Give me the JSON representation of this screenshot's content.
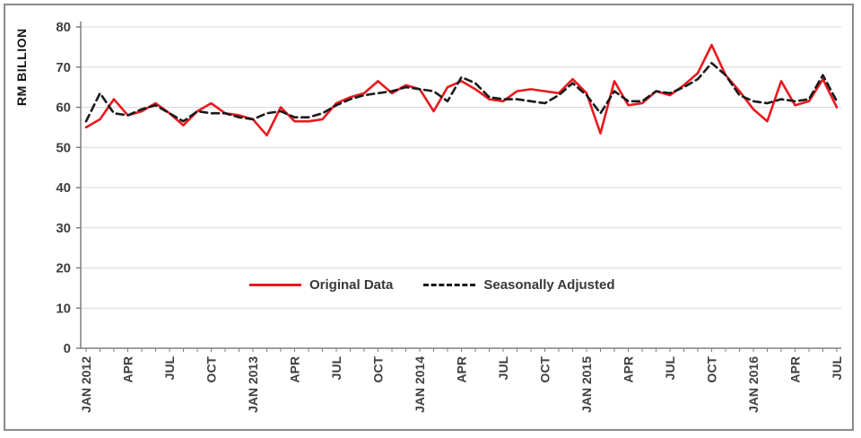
{
  "figure": {
    "ylabel": "RM BILLION"
  },
  "legend": {
    "items": [
      {
        "label": "Original Data",
        "style": "solid",
        "color": "#e8191f"
      },
      {
        "label": "Seasonally Adjusted",
        "style": "dashed",
        "color": "#1a1a1a"
      }
    ]
  },
  "colors": {
    "grid": "#d9d9d9",
    "axis": "#7f7f7f",
    "tick_text": "#3f3f3f",
    "original": "#e8191f",
    "adjusted": "#1a1a1a"
  },
  "chart_data": {
    "type": "line",
    "title": "",
    "xlabel": "",
    "ylabel": "RM BILLION",
    "ylim": [
      0,
      80
    ],
    "y_ticks": [
      0,
      10,
      20,
      30,
      40,
      50,
      60,
      70,
      80
    ],
    "grid": "horizontal",
    "legend_position": "inside-bottom-center",
    "x": [
      "JAN 2012",
      "FEB 2012",
      "MAR 2012",
      "APR 2012",
      "MAY 2012",
      "JUN 2012",
      "JUL 2012",
      "AUG 2012",
      "SEP 2012",
      "OCT 2012",
      "NOV 2012",
      "DEC 2012",
      "JAN 2013",
      "FEB 2013",
      "MAR 2013",
      "APR 2013",
      "MAY 2013",
      "JUN 2013",
      "JUL 2013",
      "AUG 2013",
      "SEP 2013",
      "OCT 2013",
      "NOV 2013",
      "DEC 2013",
      "JAN 2014",
      "FEB 2014",
      "MAR 2014",
      "APR 2014",
      "MAY 2014",
      "JUN 2014",
      "JUL 2014",
      "AUG 2014",
      "SEP 2014",
      "OCT 2014",
      "NOV 2014",
      "DEC 2014",
      "JAN 2015",
      "FEB 2015",
      "MAR 2015",
      "APR 2015",
      "MAY 2015",
      "JUN 2015",
      "JUL 2015",
      "AUG 2015",
      "SEP 2015",
      "OCT 2015",
      "NOV 2015",
      "DEC 2015",
      "JAN 2016",
      "FEB 2016",
      "MAR 2016",
      "APR 2016",
      "MAY 2016",
      "JUN 2016",
      "JUL 2016"
    ],
    "x_tick_indices": [
      0,
      3,
      6,
      9,
      12,
      15,
      18,
      21,
      24,
      27,
      30,
      33,
      36,
      39,
      42,
      45,
      48,
      51,
      54
    ],
    "x_tick_labels": [
      "JAN 2012",
      "APR",
      "JUL",
      "OCT",
      "JAN 2013",
      "APR",
      "JUL",
      "OCT",
      "JAN 2014",
      "APR",
      "JUL",
      "OCT",
      "JAN 2015",
      "APR",
      "JUL",
      "OCT",
      "JAN 2016",
      "APR",
      "JUL"
    ],
    "series": [
      {
        "name": "Original Data",
        "style": "solid",
        "color": "#e8191f",
        "values": [
          55,
          57,
          62,
          58,
          59,
          61,
          58.5,
          55.5,
          59,
          61,
          58.5,
          58,
          57,
          53,
          60,
          56.5,
          56.5,
          57,
          61,
          62.5,
          63.5,
          66.5,
          63.5,
          65.5,
          64.5,
          59,
          65,
          66.5,
          64.5,
          62,
          61.5,
          64,
          64.5,
          64,
          63.5,
          67,
          63.5,
          53.5,
          66.5,
          60.5,
          61,
          64,
          63,
          65.5,
          68.5,
          75.5,
          68,
          64,
          59.5,
          56.5,
          66.5,
          60.5,
          61.5,
          67,
          60
        ]
      },
      {
        "name": "Seasonally Adjusted",
        "style": "dashed",
        "color": "#1a1a1a",
        "values": [
          56.5,
          63.5,
          58.5,
          58,
          59.5,
          60.5,
          58.5,
          56.5,
          59,
          58.5,
          58.5,
          57.5,
          57,
          58.5,
          59,
          57.5,
          57.5,
          58.5,
          60.5,
          62,
          63,
          63.5,
          64,
          65,
          64.5,
          64,
          61.5,
          67.5,
          66,
          62.5,
          62,
          62,
          61.5,
          61,
          63,
          66,
          63,
          58.5,
          64,
          61.5,
          61.5,
          64,
          63.5,
          65,
          67,
          71,
          68,
          63,
          61.5,
          61,
          62,
          61.5,
          62,
          68,
          61.5
        ]
      }
    ]
  }
}
